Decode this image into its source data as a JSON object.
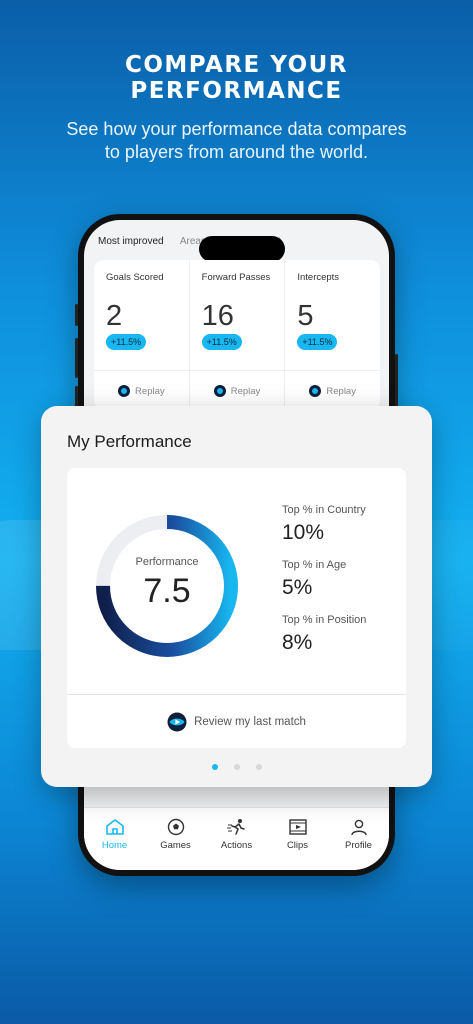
{
  "promo": {
    "headline_line1": "COMPARE YOUR",
    "headline_line2": "PERFORMANCE",
    "subtitle_line1": "See how your performance data compares",
    "subtitle_line2": "to players from around the world."
  },
  "tabs": {
    "active": "Most improved",
    "inactive": "Areas for improvement"
  },
  "stats": [
    {
      "label": "Goals Scored",
      "value": "2",
      "change": "+11.5%",
      "replay": "Replay"
    },
    {
      "label": "Forward Passes",
      "value": "16",
      "change": "+11.5%",
      "replay": "Replay"
    },
    {
      "label": "Intercepts",
      "value": "5",
      "change": "+11.5%",
      "replay": "Replay"
    }
  ],
  "performance": {
    "title": "My Performance",
    "ring_label": "Performance",
    "score": "7.5",
    "score_fraction": 0.75,
    "ranks": [
      {
        "label": "Top % in Country",
        "value": "10%"
      },
      {
        "label": "Top % in Age",
        "value": "5%"
      },
      {
        "label": "Top % in Position",
        "value": "8%"
      }
    ],
    "review_label": "Review my last match",
    "pager_total": 3,
    "pager_active": 1
  },
  "nav": [
    {
      "label": "Home",
      "icon": "home-icon",
      "active": true
    },
    {
      "label": "Games",
      "icon": "soccer-ball-icon",
      "active": false
    },
    {
      "label": "Actions",
      "icon": "running-player-icon",
      "active": false
    },
    {
      "label": "Clips",
      "icon": "film-clip-icon",
      "active": false
    },
    {
      "label": "Profile",
      "icon": "profile-icon",
      "active": false
    }
  ],
  "colors": {
    "accent": "#18b7ef",
    "ring_dark": "#0f1e4a",
    "ring_light": "#18b7ef"
  }
}
